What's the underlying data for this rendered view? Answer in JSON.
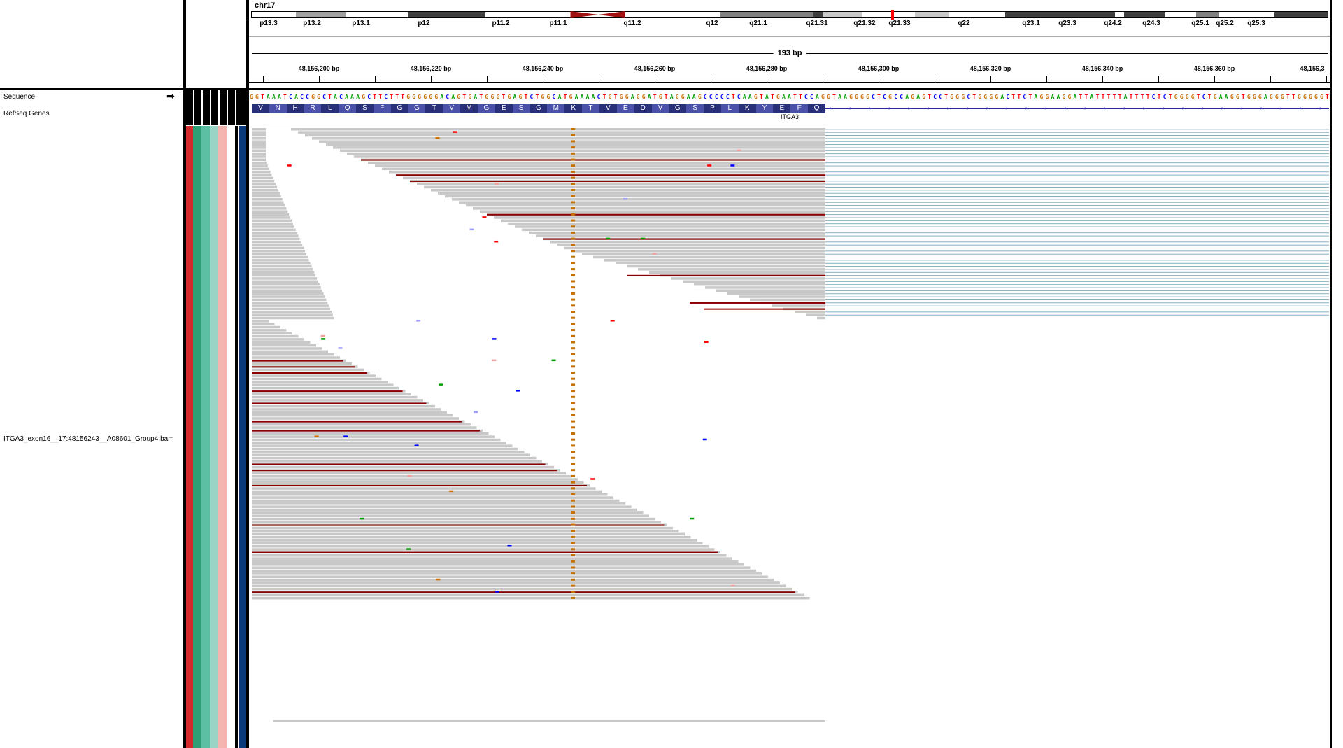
{
  "chromosome": "chr17",
  "ideogram": {
    "bands": [
      {
        "label": "p13.3",
        "from": 0,
        "to": 58,
        "fill": "#ffffff"
      },
      {
        "label": "p13.2",
        "from": 58,
        "to": 124,
        "fill": "#a0a0a0"
      },
      {
        "label": "p13.1",
        "from": 124,
        "to": 204,
        "fill": "#ffffff"
      },
      {
        "label": "p12",
        "from": 204,
        "to": 305,
        "fill": "#404040"
      },
      {
        "label": "p11.2",
        "from": 305,
        "to": 420,
        "fill": "#ffffff"
      },
      {
        "label": "p11.1",
        "from": 420,
        "to": 500,
        "fill": "#ffffff"
      },
      {
        "label": "q11.2",
        "from": 500,
        "to": 610,
        "fill": "#ffffff"
      },
      {
        "label": "q12",
        "from": 610,
        "to": 732,
        "fill": "#808080"
      },
      {
        "label": "q21.1",
        "from": 732,
        "to": 745,
        "fill": "#404040"
      },
      {
        "label": "q21.31",
        "from": 745,
        "to": 795,
        "fill": "#c8c8c8"
      },
      {
        "label": "q21.32",
        "from": 795,
        "to": 864,
        "fill": "#ffffff"
      },
      {
        "label": "q21.33",
        "from": 864,
        "to": 909,
        "fill": "#c8c8c8"
      },
      {
        "label": "q22",
        "from": 909,
        "to": 981,
        "fill": "#ffffff"
      },
      {
        "label": "q23.1",
        "from": 981,
        "to": 1124,
        "fill": "#404040"
      },
      {
        "label": "q23.3",
        "from": 1124,
        "to": 1136,
        "fill": "#ffffff"
      },
      {
        "label": "q24.2",
        "from": 1136,
        "to": 1190,
        "fill": "#404040"
      },
      {
        "label": "q24.3",
        "from": 1190,
        "to": 1230,
        "fill": "#ffffff"
      },
      {
        "label": "q25.1",
        "from": 1230,
        "to": 1260,
        "fill": "#808080"
      },
      {
        "label": "q25.2",
        "from": 1260,
        "to": 1332,
        "fill": "#ffffff"
      },
      {
        "label": "q25.3",
        "from": 1332,
        "to": 1402,
        "fill": "#404040"
      }
    ],
    "labels": [
      "p13.3",
      "p13.2",
      "p13.1",
      "p12",
      "p11.2",
      "p11.1",
      "q11.2",
      "q12",
      "q21.1",
      "q21.31",
      "q21.32",
      "q21.33",
      "q22",
      "q23.1",
      "q23.3",
      "q24.2",
      "q24.3",
      "q25.1",
      "q25.2",
      "q25.3"
    ]
  },
  "ruler": {
    "span_label": "193 bp",
    "ticks": [
      "48,156,200 bp",
      "48,156,220 bp",
      "48,156,240 bp",
      "48,156,260 bp",
      "48,156,280 bp",
      "48,156,300 bp",
      "48,156,320 bp",
      "48,156,340 bp",
      "48,156,360 bp",
      "48,156,3"
    ]
  },
  "tracks": {
    "sequence_label": "Sequence",
    "sequence_arrow": "➡",
    "genes_label": "RefSeq Genes",
    "bam_label": "ITGA3_exon16__17:48156243__A08601_Group4.bam"
  },
  "sequence": "GGTAAATCACCGGCTACAAAGCTTCTTTGGGGGGACAGTGATGGGTGAGTCTGGCATGAAAACTGTGGAGGATGTAGGAAGCCCCCTCAAGTATGAATTCCAGGTAAGGGGCTCGCCAGAGTCCTGGGCTGGGGACTTCTAGGAAGGATTATTTTTATTTTCTCTGGGGTCTGAAGGTGGGAGGGTTGGGGGT",
  "amino_acids": [
    "V",
    "N",
    "H",
    "R",
    "L",
    "Q",
    "S",
    "F",
    "G",
    "G",
    "T",
    "V",
    "M",
    "G",
    "E",
    "S",
    "G",
    "M",
    "K",
    "T",
    "V",
    "E",
    "D",
    "V",
    "G",
    "S",
    "P",
    "L",
    "K",
    "Y",
    "E",
    "F",
    "Q"
  ],
  "gene_name": "ITGA3",
  "colors": {
    "base_A": "#00a000",
    "base_C": "#0000ff",
    "base_G": "#d17105",
    "base_T": "#ff0000",
    "read": "#c8c8c8",
    "deletion_read": "#8b0000",
    "mismatch_column": "#c87000",
    "splice_junction": "#7aa6b8",
    "attr_red": "#d42a2a",
    "attr_green": "#2e9e77",
    "attr_teal1": "#5cbfa4",
    "attr_teal2": "#9ad4c4",
    "attr_pink": "#f4b4b0",
    "attr_navy": "#0a3a7a"
  }
}
